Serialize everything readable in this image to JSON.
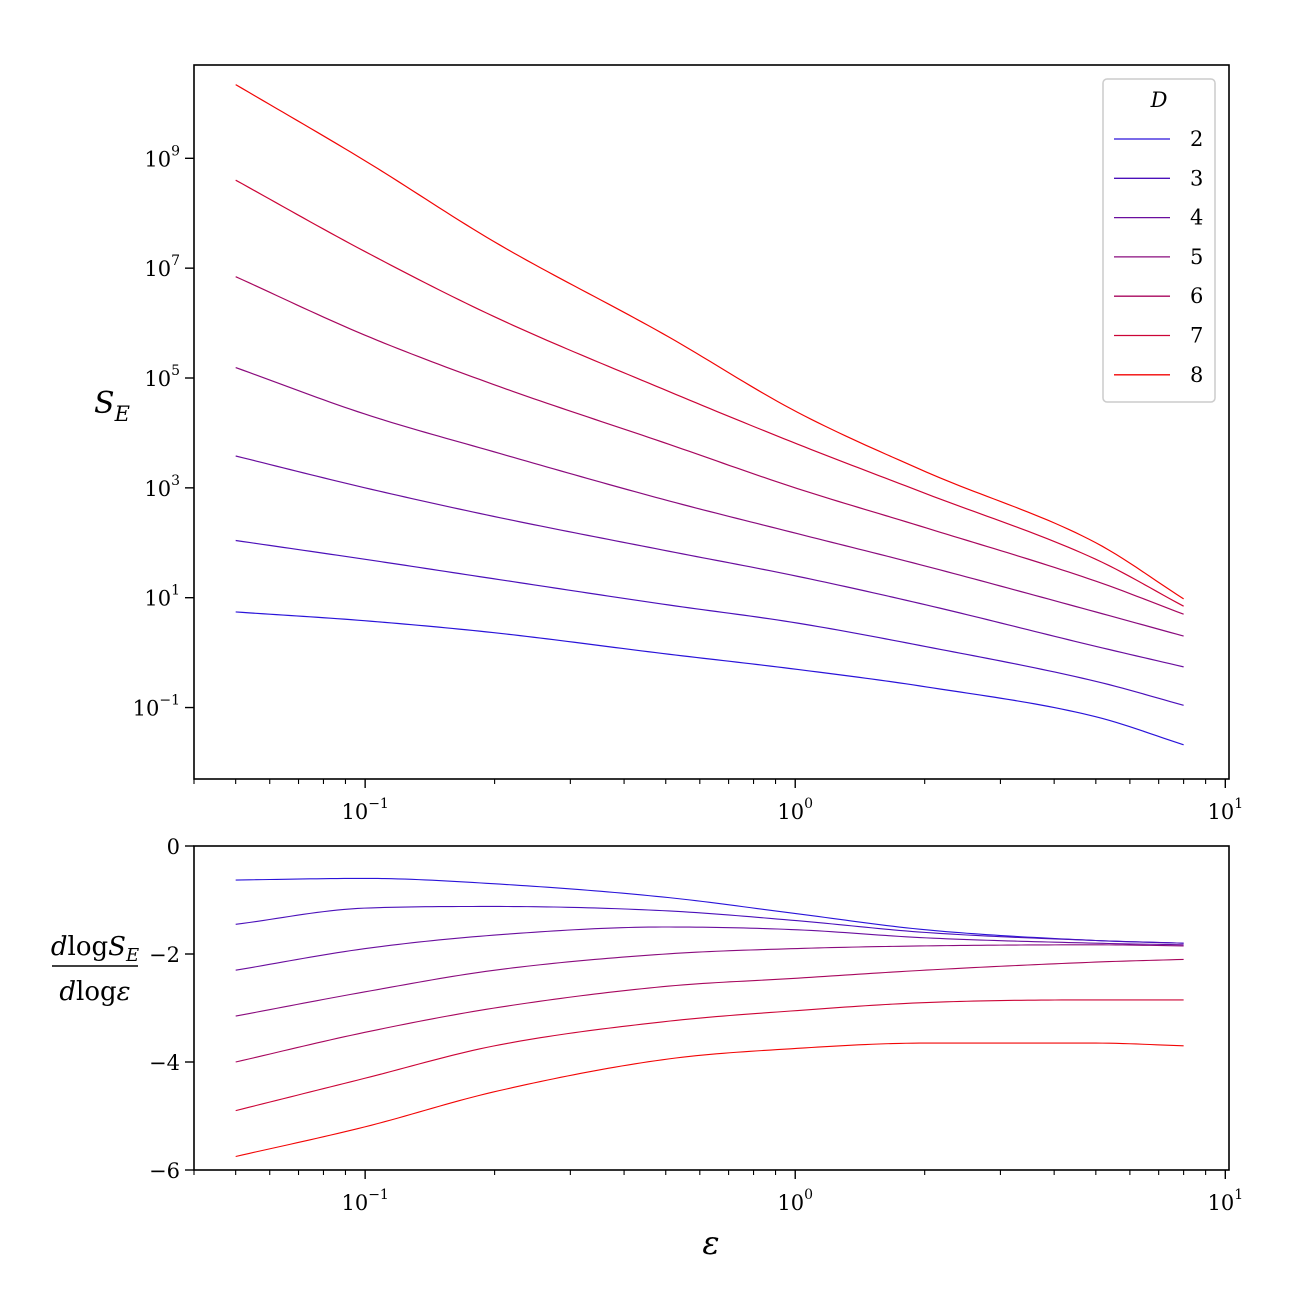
{
  "chart_data": [
    {
      "type": "line",
      "xscale": "log",
      "yscale": "log",
      "xlim": [
        0.04,
        10.2
      ],
      "ylim": [
        0.005,
        50000000000
      ],
      "ylabel_main": "S",
      "ylabel_sub": "E",
      "xticks": [
        {
          "value": 0.1,
          "base": "10",
          "exp": "−1"
        },
        {
          "value": 1,
          "base": "10",
          "exp": "0"
        },
        {
          "value": 10,
          "base": "10",
          "exp": "1"
        }
      ],
      "yticks": [
        {
          "value": 0.1,
          "base": "10",
          "exp": "−1"
        },
        {
          "value": 10,
          "base": "10",
          "exp": "1"
        },
        {
          "value": 1000,
          "base": "10",
          "exp": "3"
        },
        {
          "value": 100000,
          "base": "10",
          "exp": "5"
        },
        {
          "value": 10000000,
          "base": "10",
          "exp": "7"
        },
        {
          "value": 1000000000,
          "base": "10",
          "exp": "9"
        }
      ],
      "legend": {
        "title": "D",
        "placement": "top-right"
      },
      "x": [
        0.05,
        0.1,
        0.2,
        0.5,
        1,
        2,
        5,
        8
      ],
      "series": [
        {
          "name": "2",
          "color": "#2a13d9",
          "values": [
            5.5,
            3.8,
            2.3,
            0.95,
            0.5,
            0.24,
            0.068,
            0.021
          ]
        },
        {
          "name": "3",
          "color": "#4b10ba",
          "values": [
            110,
            50,
            22,
            7.5,
            3.5,
            1.3,
            0.3,
            0.11
          ]
        },
        {
          "name": "4",
          "color": "#6a0e9e",
          "values": [
            3800,
            1000,
            300,
            72,
            25,
            7.5,
            1.3,
            0.55
          ]
        },
        {
          "name": "5",
          "color": "#8a0b7e",
          "values": [
            155000,
            22000,
            4500,
            600,
            150,
            38,
            5.5,
            2.0
          ]
        },
        {
          "name": "6",
          "color": "#a8075e",
          "values": [
            7000000,
            600000,
            75000,
            6500,
            1000,
            190,
            20,
            5.0
          ]
        },
        {
          "name": "7",
          "color": "#cc0436",
          "values": [
            400000000,
            20000000,
            1300000,
            60000,
            6500,
            800,
            50,
            7.0
          ]
        },
        {
          "name": "8",
          "color": "#f20505",
          "values": [
            22000000000,
            900000000,
            30000000,
            600000,
            25000,
            2000,
            100,
            9.5
          ]
        }
      ]
    },
    {
      "type": "line",
      "xscale": "log",
      "yscale": "linear",
      "xlim": [
        0.04,
        10.2
      ],
      "ylim": [
        -6,
        0
      ],
      "xlabel": "ε",
      "ylabel_num_d": "d",
      "ylabel_num_log": "log",
      "ylabel_num_S": "S",
      "ylabel_num_sub": "E",
      "ylabel_den_d": "d",
      "ylabel_den_log": "log",
      "ylabel_den_var": "ε",
      "xticks": [
        {
          "value": 0.1,
          "base": "10",
          "exp": "−1"
        },
        {
          "value": 1,
          "base": "10",
          "exp": "0"
        },
        {
          "value": 10,
          "base": "10",
          "exp": "1"
        }
      ],
      "yticks": [
        {
          "value": 0,
          "label": "0"
        },
        {
          "value": -2,
          "label": "−2"
        },
        {
          "value": -4,
          "label": "−4"
        },
        {
          "value": -6,
          "label": "−6"
        }
      ],
      "x": [
        0.05,
        0.1,
        0.2,
        0.5,
        1,
        2,
        5,
        8
      ],
      "series": [
        {
          "name": "2",
          "color": "#2a13d9",
          "values": [
            -0.63,
            -0.6,
            -0.7,
            -0.95,
            -1.25,
            -1.55,
            -1.75,
            -1.8
          ]
        },
        {
          "name": "3",
          "color": "#4b10ba",
          "values": [
            -1.45,
            -1.15,
            -1.12,
            -1.2,
            -1.38,
            -1.6,
            -1.75,
            -1.8
          ]
        },
        {
          "name": "4",
          "color": "#6a0e9e",
          "values": [
            -2.3,
            -1.9,
            -1.65,
            -1.5,
            -1.55,
            -1.7,
            -1.8,
            -1.83
          ]
        },
        {
          "name": "5",
          "color": "#8a0b7e",
          "values": [
            -3.15,
            -2.7,
            -2.3,
            -2.0,
            -1.9,
            -1.85,
            -1.83,
            -1.85
          ]
        },
        {
          "name": "6",
          "color": "#a8075e",
          "values": [
            -4.0,
            -3.45,
            -3.0,
            -2.6,
            -2.45,
            -2.3,
            -2.15,
            -2.1
          ]
        },
        {
          "name": "7",
          "color": "#cc0436",
          "values": [
            -4.9,
            -4.3,
            -3.7,
            -3.25,
            -3.05,
            -2.9,
            -2.85,
            -2.85
          ]
        },
        {
          "name": "8",
          "color": "#f20505",
          "values": [
            -5.75,
            -5.2,
            -4.55,
            -3.95,
            -3.75,
            -3.65,
            -3.65,
            -3.7
          ]
        }
      ]
    }
  ]
}
